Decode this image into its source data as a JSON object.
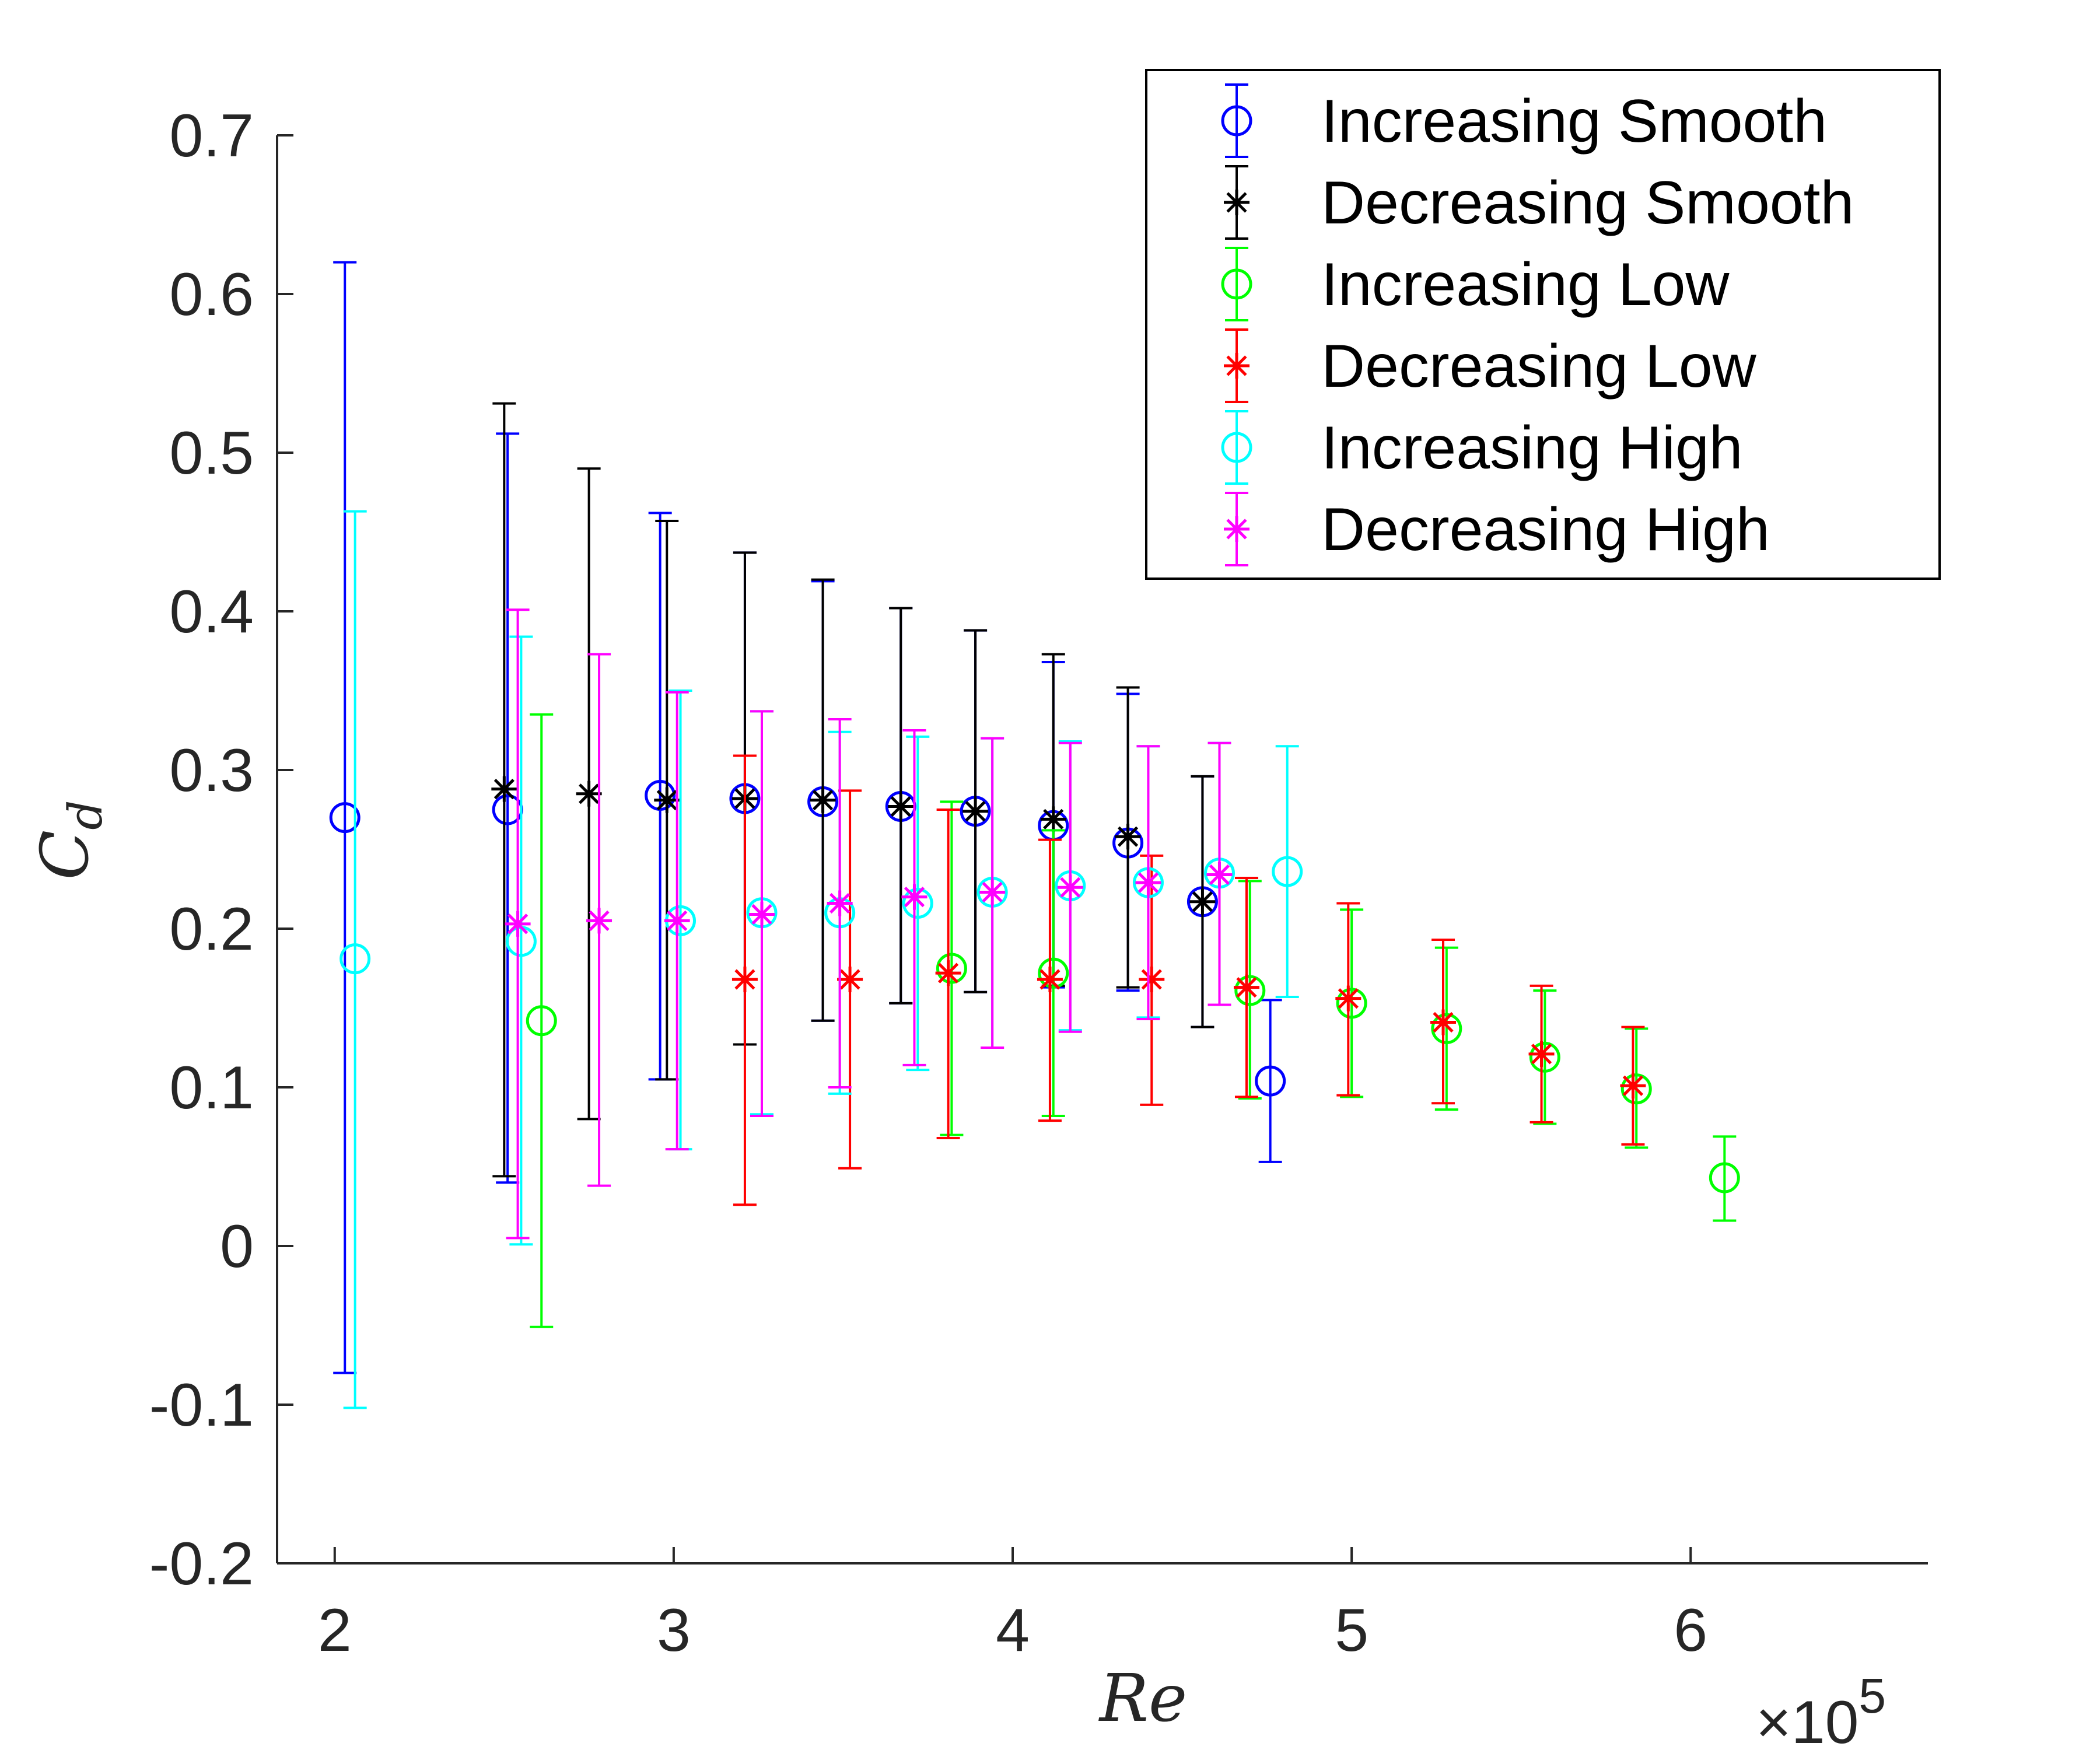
{
  "chart_data": {
    "type": "scatter",
    "title": "",
    "xlabel": "Re",
    "ylabel": "C_d",
    "ylabel_main": "C",
    "ylabel_sub": "d",
    "x_multiplier": "×10",
    "x_multiplier_exp": "5",
    "xlim": [
      1.83,
      6.7
    ],
    "ylim": [
      -0.2,
      0.7
    ],
    "x_ticks": [
      2,
      3,
      4,
      5,
      6
    ],
    "x_tick_labels": [
      "2",
      "3",
      "4",
      "5",
      "6"
    ],
    "y_ticks": [
      -0.2,
      -0.1,
      0,
      0.1,
      0.2,
      0.3,
      0.4,
      0.5,
      0.6,
      0.7
    ],
    "y_tick_labels": [
      "-0.2",
      "-0.1",
      "0",
      "0.1",
      "0.2",
      "0.3",
      "0.4",
      "0.5",
      "0.6",
      "0.7"
    ],
    "grid": false,
    "legend_position": "top-right",
    "series": [
      {
        "name": "Increasing Smooth",
        "color": "#0000ff",
        "marker": "circle",
        "points": [
          {
            "x": 2.03,
            "y": 0.27,
            "lo": -0.08,
            "hi": 0.62
          },
          {
            "x": 2.51,
            "y": 0.275,
            "lo": 0.04,
            "hi": 0.512
          },
          {
            "x": 2.96,
            "y": 0.284,
            "lo": 0.105,
            "hi": 0.462
          },
          {
            "x": 3.21,
            "y": 0.282,
            "lo": 0.127,
            "hi": 0.437
          },
          {
            "x": 3.44,
            "y": 0.28,
            "lo": 0.142,
            "hi": 0.419
          },
          {
            "x": 3.67,
            "y": 0.277,
            "lo": 0.153,
            "hi": 0.402
          },
          {
            "x": 3.89,
            "y": 0.274,
            "lo": 0.16,
            "hi": 0.388
          },
          {
            "x": 4.12,
            "y": 0.265,
            "lo": 0.163,
            "hi": 0.368
          },
          {
            "x": 4.34,
            "y": 0.254,
            "lo": 0.161,
            "hi": 0.348
          },
          {
            "x": 4.56,
            "y": 0.217,
            "lo": 0.138,
            "hi": 0.296
          },
          {
            "x": 4.76,
            "y": 0.104,
            "lo": 0.053,
            "hi": 0.155
          }
        ]
      },
      {
        "name": "Decreasing Smooth",
        "color": "#000000",
        "marker": "star",
        "points": [
          {
            "x": 2.5,
            "y": 0.288,
            "lo": 0.044,
            "hi": 0.531
          },
          {
            "x": 2.75,
            "y": 0.285,
            "lo": 0.08,
            "hi": 0.49
          },
          {
            "x": 2.98,
            "y": 0.281,
            "lo": 0.105,
            "hi": 0.457
          },
          {
            "x": 3.21,
            "y": 0.282,
            "lo": 0.127,
            "hi": 0.437
          },
          {
            "x": 3.44,
            "y": 0.281,
            "lo": 0.142,
            "hi": 0.42
          },
          {
            "x": 3.67,
            "y": 0.277,
            "lo": 0.153,
            "hi": 0.402
          },
          {
            "x": 3.89,
            "y": 0.274,
            "lo": 0.16,
            "hi": 0.388
          },
          {
            "x": 4.12,
            "y": 0.269,
            "lo": 0.164,
            "hi": 0.373
          },
          {
            "x": 4.34,
            "y": 0.258,
            "lo": 0.163,
            "hi": 0.352
          },
          {
            "x": 4.56,
            "y": 0.217,
            "lo": 0.138,
            "hi": 0.296
          }
        ]
      },
      {
        "name": "Increasing Low",
        "color": "#00ff00",
        "marker": "circle",
        "points": [
          {
            "x": 2.61,
            "y": 0.142,
            "lo": -0.051,
            "hi": 0.335
          },
          {
            "x": 3.82,
            "y": 0.175,
            "lo": 0.07,
            "hi": 0.28
          },
          {
            "x": 4.12,
            "y": 0.172,
            "lo": 0.082,
            "hi": 0.262
          },
          {
            "x": 4.7,
            "y": 0.161,
            "lo": 0.093,
            "hi": 0.23
          },
          {
            "x": 5.0,
            "y": 0.153,
            "lo": 0.094,
            "hi": 0.212
          },
          {
            "x": 5.28,
            "y": 0.137,
            "lo": 0.086,
            "hi": 0.188
          },
          {
            "x": 5.57,
            "y": 0.119,
            "lo": 0.077,
            "hi": 0.161
          },
          {
            "x": 5.84,
            "y": 0.099,
            "lo": 0.062,
            "hi": 0.137
          },
          {
            "x": 6.1,
            "y": 0.043,
            "lo": 0.016,
            "hi": 0.069
          }
        ]
      },
      {
        "name": "Decreasing Low",
        "color": "#ff0000",
        "marker": "star",
        "points": [
          {
            "x": 3.21,
            "y": 0.168,
            "lo": 0.026,
            "hi": 0.309
          },
          {
            "x": 3.52,
            "y": 0.168,
            "lo": 0.049,
            "hi": 0.287
          },
          {
            "x": 3.81,
            "y": 0.172,
            "lo": 0.068,
            "hi": 0.275
          },
          {
            "x": 4.11,
            "y": 0.168,
            "lo": 0.079,
            "hi": 0.256
          },
          {
            "x": 4.41,
            "y": 0.168,
            "lo": 0.089,
            "hi": 0.246
          },
          {
            "x": 4.69,
            "y": 0.163,
            "lo": 0.094,
            "hi": 0.232
          },
          {
            "x": 4.99,
            "y": 0.156,
            "lo": 0.095,
            "hi": 0.216
          },
          {
            "x": 5.27,
            "y": 0.141,
            "lo": 0.09,
            "hi": 0.193
          },
          {
            "x": 5.56,
            "y": 0.121,
            "lo": 0.078,
            "hi": 0.164
          },
          {
            "x": 5.83,
            "y": 0.101,
            "lo": 0.064,
            "hi": 0.138
          }
        ]
      },
      {
        "name": "Increasing High",
        "color": "#00ffff",
        "marker": "circle",
        "points": [
          {
            "x": 2.06,
            "y": 0.181,
            "lo": -0.102,
            "hi": 0.463
          },
          {
            "x": 2.55,
            "y": 0.192,
            "lo": 0.001,
            "hi": 0.384
          },
          {
            "x": 3.02,
            "y": 0.205,
            "lo": 0.061,
            "hi": 0.35
          },
          {
            "x": 3.26,
            "y": 0.21,
            "lo": 0.083,
            "hi": 0.337
          },
          {
            "x": 3.49,
            "y": 0.21,
            "lo": 0.096,
            "hi": 0.324
          },
          {
            "x": 3.72,
            "y": 0.216,
            "lo": 0.111,
            "hi": 0.321
          },
          {
            "x": 3.94,
            "y": 0.223,
            "lo": 0.125,
            "hi": 0.32
          },
          {
            "x": 4.17,
            "y": 0.227,
            "lo": 0.136,
            "hi": 0.318
          },
          {
            "x": 4.4,
            "y": 0.229,
            "lo": 0.144,
            "hi": 0.315
          },
          {
            "x": 4.61,
            "y": 0.235,
            "lo": 0.152,
            "hi": 0.317
          },
          {
            "x": 4.81,
            "y": 0.236,
            "lo": 0.157,
            "hi": 0.315
          }
        ]
      },
      {
        "name": "Decreasing High",
        "color": "#ff00ff",
        "marker": "star",
        "points": [
          {
            "x": 2.54,
            "y": 0.203,
            "lo": 0.005,
            "hi": 0.401
          },
          {
            "x": 2.78,
            "y": 0.205,
            "lo": 0.038,
            "hi": 0.373
          },
          {
            "x": 3.01,
            "y": 0.205,
            "lo": 0.061,
            "hi": 0.349
          },
          {
            "x": 3.26,
            "y": 0.209,
            "lo": 0.082,
            "hi": 0.337
          },
          {
            "x": 3.49,
            "y": 0.216,
            "lo": 0.1,
            "hi": 0.332
          },
          {
            "x": 3.71,
            "y": 0.22,
            "lo": 0.114,
            "hi": 0.325
          },
          {
            "x": 3.94,
            "y": 0.223,
            "lo": 0.125,
            "hi": 0.32
          },
          {
            "x": 4.17,
            "y": 0.226,
            "lo": 0.135,
            "hi": 0.317
          },
          {
            "x": 4.4,
            "y": 0.229,
            "lo": 0.143,
            "hi": 0.315
          },
          {
            "x": 4.61,
            "y": 0.234,
            "lo": 0.152,
            "hi": 0.317
          }
        ]
      }
    ]
  }
}
